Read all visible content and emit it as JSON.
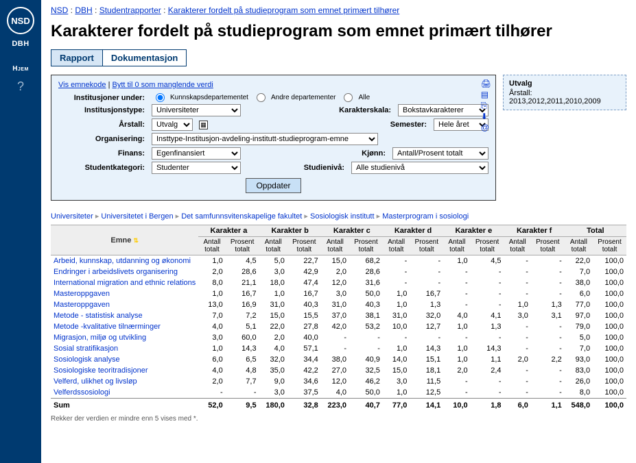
{
  "sidebar": {
    "logo": "NSD",
    "label": "DBH",
    "home": "Hjem",
    "help": "?"
  },
  "breadcrumb": {
    "items": [
      "NSD",
      "DBH",
      "Studentrapporter",
      "Karakterer fordelt på studieprogram som emnet primært tilhører"
    ]
  },
  "title": "Karakterer fordelt på studieprogram som emnet primært tilhører",
  "tabs": {
    "a": "Rapport",
    "b": "Dokumentasjon"
  },
  "filter": {
    "links": {
      "a": "Vis emnekode",
      "b": "Bytt til 0 som manglende verdi"
    },
    "institusjoner_under": {
      "label": "Institusjoner under:",
      "opts": [
        "Kunnskapsdepartementet",
        "Andre departementer",
        "Alle"
      ]
    },
    "institusjonstype": {
      "label": "Institusjonstype:",
      "value": "Universiteter"
    },
    "karakterskala": {
      "label": "Karakterskala:",
      "value": "Bokstavkarakterer"
    },
    "arstall": {
      "label": "Årstall:",
      "value": "Utvalg"
    },
    "semester": {
      "label": "Semester:",
      "value": "Hele året"
    },
    "organisering": {
      "label": "Organisering:",
      "value": "Insttype-Institusjon-avdeling-institutt-studieprogram-emne"
    },
    "finans": {
      "label": "Finans:",
      "value": "Egenfinansiert"
    },
    "kjonn": {
      "label": "Kjønn:",
      "value": "Antall/Prosent totalt"
    },
    "studentkategori": {
      "label": "Studentkategori:",
      "value": "Studenter"
    },
    "studieniva": {
      "label": "Studienivå:",
      "value": "Alle studienivå"
    },
    "update": "Oppdater"
  },
  "utvalg": {
    "title": "Utvalg",
    "text": "Årstall: 2013,2012,2011,2010,2009"
  },
  "path": [
    "Universiteter",
    "Universitetet i Bergen",
    "Det samfunnsvitenskapelige fakultet",
    "Sosiologisk institutt",
    "Masterprogram i sosiologi"
  ],
  "table": {
    "emne_head": "Emne",
    "groups": [
      "Karakter a",
      "Karakter b",
      "Karakter c",
      "Karakter d",
      "Karakter e",
      "Karakter f",
      "Total"
    ],
    "sub": [
      "Antall totalt",
      "Prosent totalt"
    ],
    "rows": [
      {
        "label": "Arbeid, kunnskap, utdanning og økonomi",
        "c": [
          "1,0",
          "4,5",
          "5,0",
          "22,7",
          "15,0",
          "68,2",
          "-",
          "-",
          "1,0",
          "4,5",
          "-",
          "-",
          "22,0",
          "100,0"
        ]
      },
      {
        "label": "Endringer i arbeidslivets organisering",
        "c": [
          "2,0",
          "28,6",
          "3,0",
          "42,9",
          "2,0",
          "28,6",
          "-",
          "-",
          "-",
          "-",
          "-",
          "-",
          "7,0",
          "100,0"
        ]
      },
      {
        "label": "International migration and ethnic relations",
        "c": [
          "8,0",
          "21,1",
          "18,0",
          "47,4",
          "12,0",
          "31,6",
          "-",
          "-",
          "-",
          "-",
          "-",
          "-",
          "38,0",
          "100,0"
        ]
      },
      {
        "label": "Masteroppgaven",
        "c": [
          "1,0",
          "16,7",
          "1,0",
          "16,7",
          "3,0",
          "50,0",
          "1,0",
          "16,7",
          "-",
          "-",
          "-",
          "-",
          "6,0",
          "100,0"
        ]
      },
      {
        "label": "Masteroppgaven",
        "c": [
          "13,0",
          "16,9",
          "31,0",
          "40,3",
          "31,0",
          "40,3",
          "1,0",
          "1,3",
          "-",
          "-",
          "1,0",
          "1,3",
          "77,0",
          "100,0"
        ]
      },
      {
        "label": "Metode - statistisk analyse",
        "c": [
          "7,0",
          "7,2",
          "15,0",
          "15,5",
          "37,0",
          "38,1",
          "31,0",
          "32,0",
          "4,0",
          "4,1",
          "3,0",
          "3,1",
          "97,0",
          "100,0"
        ]
      },
      {
        "label": "Metode -kvalitative tilnærminger",
        "c": [
          "4,0",
          "5,1",
          "22,0",
          "27,8",
          "42,0",
          "53,2",
          "10,0",
          "12,7",
          "1,0",
          "1,3",
          "-",
          "-",
          "79,0",
          "100,0"
        ]
      },
      {
        "label": "Migrasjon, miljø og utvikling",
        "c": [
          "3,0",
          "60,0",
          "2,0",
          "40,0",
          "-",
          "-",
          "-",
          "-",
          "-",
          "-",
          "-",
          "-",
          "5,0",
          "100,0"
        ]
      },
      {
        "label": "Sosial stratifikasjon",
        "c": [
          "1,0",
          "14,3",
          "4,0",
          "57,1",
          "-",
          "-",
          "1,0",
          "14,3",
          "1,0",
          "14,3",
          "-",
          "-",
          "7,0",
          "100,0"
        ]
      },
      {
        "label": "Sosiologisk analyse",
        "c": [
          "6,0",
          "6,5",
          "32,0",
          "34,4",
          "38,0",
          "40,9",
          "14,0",
          "15,1",
          "1,0",
          "1,1",
          "2,0",
          "2,2",
          "93,0",
          "100,0"
        ]
      },
      {
        "label": "Sosiologiske teoritradisjoner",
        "c": [
          "4,0",
          "4,8",
          "35,0",
          "42,2",
          "27,0",
          "32,5",
          "15,0",
          "18,1",
          "2,0",
          "2,4",
          "-",
          "-",
          "83,0",
          "100,0"
        ]
      },
      {
        "label": "Velferd, ulikhet og livsløp",
        "c": [
          "2,0",
          "7,7",
          "9,0",
          "34,6",
          "12,0",
          "46,2",
          "3,0",
          "11,5",
          "-",
          "-",
          "-",
          "-",
          "26,0",
          "100,0"
        ]
      },
      {
        "label": "Velferdssosiologi",
        "c": [
          "-",
          "-",
          "3,0",
          "37,5",
          "4,0",
          "50,0",
          "1,0",
          "12,5",
          "-",
          "-",
          "-",
          "-",
          "8,0",
          "100,0"
        ]
      }
    ],
    "sum": {
      "label": "Sum",
      "c": [
        "52,0",
        "9,5",
        "180,0",
        "32,8",
        "223,0",
        "40,7",
        "77,0",
        "14,1",
        "10,0",
        "1,8",
        "6,0",
        "1,1",
        "548,0",
        "100,0"
      ]
    },
    "footnote": "Rekker der verdien er mindre enn 5 vises med *."
  }
}
